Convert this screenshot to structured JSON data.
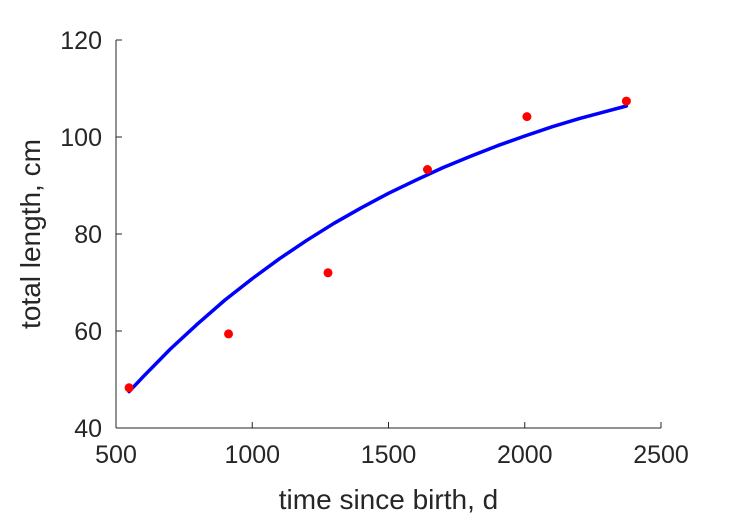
{
  "chart_data": {
    "type": "scatter",
    "xlabel": "time since birth, d",
    "ylabel": "total length, cm",
    "xlim": [
      500,
      2500
    ],
    "ylim": [
      40,
      120
    ],
    "xticks": [
      500,
      1000,
      1500,
      2000,
      2500
    ],
    "yticks": [
      40,
      60,
      80,
      100,
      120
    ],
    "xtick_labels": [
      "500",
      "1000",
      "1500",
      "2000",
      "2500"
    ],
    "ytick_labels": [
      "40",
      "60",
      "80",
      "100",
      "120"
    ],
    "grid": false,
    "box": false,
    "series": [
      {
        "kind": "scatter",
        "color": "#ff0000",
        "x": [
          548,
          913,
          1278,
          1643,
          2008,
          2373
        ],
        "y": [
          48.3,
          59.4,
          72.0,
          93.3,
          104.2,
          107.4
        ]
      },
      {
        "kind": "line",
        "color": "#0000ff",
        "x": [
          548,
          600,
          700,
          800,
          900,
          1000,
          1100,
          1200,
          1300,
          1400,
          1500,
          1600,
          1700,
          1800,
          1900,
          2000,
          2100,
          2200,
          2300,
          2373
        ],
        "y": [
          47.5,
          50.6,
          56.3,
          61.5,
          66.4,
          70.8,
          74.9,
          78.7,
          82.2,
          85.4,
          88.4,
          91.1,
          93.7,
          96.0,
          98.2,
          100.2,
          102.1,
          103.8,
          105.3,
          106.4
        ]
      }
    ]
  }
}
